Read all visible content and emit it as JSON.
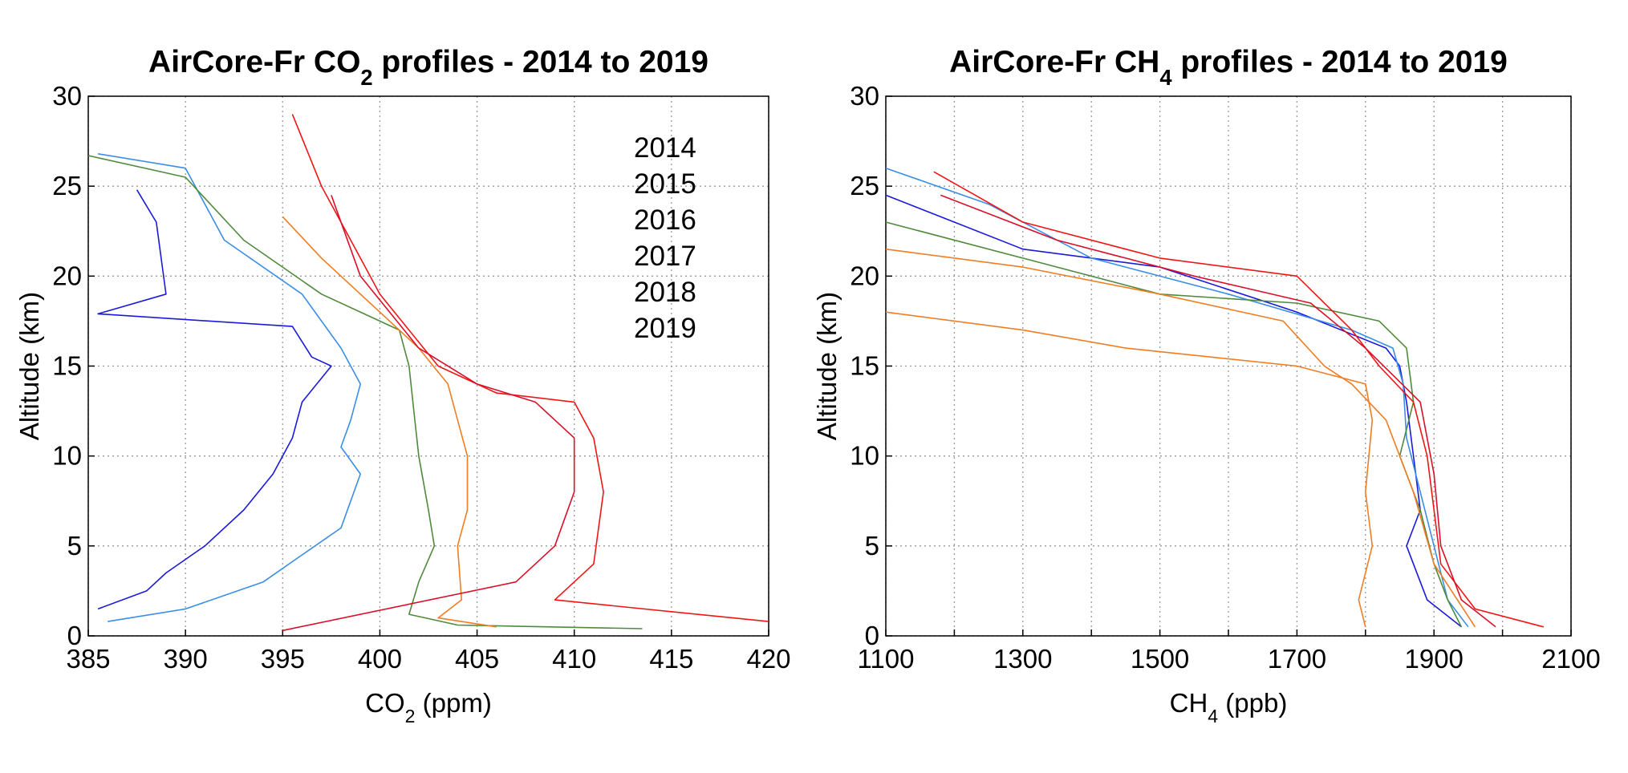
{
  "chart_data": [
    {
      "type": "line",
      "title": [
        "AirCore-Fr CO",
        "2",
        " profiles - 2014 to 2019"
      ],
      "xlabel": [
        "CO",
        "2",
        " (ppm)"
      ],
      "ylabel": "Altitude (km)",
      "xlim": [
        385,
        420
      ],
      "xticks": [
        385,
        390,
        395,
        400,
        405,
        410,
        415,
        420
      ],
      "ylim": [
        0,
        30
      ],
      "yticks": [
        0,
        5,
        10,
        15,
        20,
        25,
        30
      ],
      "grid": true,
      "legend": "upper right",
      "series": [
        {
          "name": "2014",
          "color": "#1a1adc",
          "x": [
            387.5,
            388.5,
            389,
            385.5,
            395.5,
            396.5,
            397.5,
            396,
            395.5,
            394.5,
            393,
            391,
            389,
            388,
            385.5
          ],
          "values": [
            24.8,
            23,
            19,
            17.9,
            17.2,
            15.5,
            15,
            13,
            11,
            9,
            7,
            5,
            3.5,
            2.5,
            1.5
          ]
        },
        {
          "name": "2015",
          "color": "#3a8ee6",
          "x": [
            385.5,
            390,
            392,
            396,
            398,
            399,
            398.5,
            398,
            399,
            398,
            396,
            394,
            390,
            386
          ],
          "values": [
            26.8,
            26,
            22,
            19,
            16,
            14,
            12,
            10.5,
            9,
            6,
            4.5,
            3,
            1.5,
            0.8
          ]
        },
        {
          "name": "2016",
          "color": "#4f8a3b",
          "x": [
            385,
            390,
            393,
            397,
            401,
            401.5,
            401.8,
            402,
            402.5,
            402.8,
            402,
            401.5,
            404,
            413.5
          ],
          "values": [
            26.7,
            25.5,
            22,
            19,
            17,
            15,
            12,
            10,
            7,
            5,
            3,
            1.2,
            0.6,
            0.4
          ]
        },
        {
          "name": "2017",
          "color": "#f07d22",
          "x": [
            395,
            397,
            400,
            402,
            403.5,
            404,
            404.5,
            404.5,
            404,
            404.2,
            403,
            406
          ],
          "values": [
            23.3,
            21,
            18,
            16,
            14,
            12,
            10,
            7,
            5,
            2,
            1,
            0.5
          ]
        },
        {
          "name": "2018",
          "color": "#f01616",
          "x": [
            395.5,
            397,
            398.5,
            400,
            403,
            406,
            410,
            411,
            411.5,
            411,
            409,
            420
          ],
          "values": [
            29,
            25,
            22,
            19,
            15,
            13.5,
            13,
            11,
            8,
            4,
            2,
            0.8
          ]
        },
        {
          "name": "2019",
          "color": "#d8102a",
          "x": [
            397.5,
            399,
            402,
            405,
            408,
            410,
            410,
            409,
            407,
            395
          ],
          "values": [
            24.5,
            20,
            16,
            14,
            13,
            11,
            8,
            5,
            3,
            0.3
          ]
        }
      ]
    },
    {
      "type": "line",
      "title": [
        "AirCore-Fr CH",
        "4",
        " profiles - 2014 to 2019"
      ],
      "xlabel": [
        "CH",
        "4",
        " (ppb)"
      ],
      "ylabel": "Altitude (km)",
      "xlim": [
        1100,
        2100
      ],
      "xticks": [
        1100,
        1300,
        1500,
        1700,
        1900,
        2100
      ],
      "xminor": [
        1200,
        1400,
        1600,
        1800,
        2000
      ],
      "ylim": [
        0,
        30
      ],
      "yticks": [
        0,
        5,
        10,
        15,
        20,
        25,
        30
      ],
      "grid": true,
      "series": [
        {
          "color": "#1a1adc",
          "x": [
            1100,
            1200,
            1300,
            1500,
            1700,
            1830,
            1850,
            1860,
            1870,
            1880,
            1860,
            1890,
            1940
          ],
          "values": [
            24.5,
            23,
            21.5,
            20.5,
            18,
            16,
            15,
            13,
            10,
            7,
            5,
            2,
            0.5
          ]
        },
        {
          "color": "#3a8ee6",
          "x": [
            1100,
            1250,
            1400,
            1600,
            1780,
            1840,
            1855,
            1860,
            1880,
            1900,
            1920,
            1950
          ],
          "values": [
            26,
            24,
            21,
            19,
            17,
            16,
            14,
            11,
            8,
            5,
            2,
            0.5
          ]
        },
        {
          "color": "#4f8a3b",
          "x": [
            1100,
            1300,
            1500,
            1700,
            1820,
            1860,
            1870,
            1850,
            1880,
            1900,
            1920,
            1940
          ],
          "values": [
            23,
            21,
            19,
            18.5,
            17.5,
            16,
            13,
            10,
            7,
            4,
            2,
            0.5
          ]
        },
        {
          "color": "#f07d22",
          "x": [
            1100,
            1300,
            1450,
            1700,
            1800,
            1810,
            1800,
            1810,
            1790,
            1800
          ],
          "values": [
            18,
            17,
            16,
            15,
            14,
            12,
            8,
            5,
            2,
            0.5
          ]
        },
        {
          "color": "#f07d22",
          "x": [
            1100,
            1300,
            1500,
            1680,
            1740,
            1780,
            1830,
            1870,
            1900,
            1960
          ],
          "values": [
            21.5,
            20.5,
            19,
            17.5,
            15,
            14,
            12,
            8,
            4,
            0.5
          ]
        },
        {
          "color": "#f01616",
          "x": [
            1170,
            1300,
            1500,
            1700,
            1780,
            1820,
            1870,
            1890,
            1900,
            1910,
            1960,
            2060
          ],
          "values": [
            25.8,
            23,
            21,
            20,
            17,
            15,
            13,
            10,
            7,
            4,
            1.5,
            0.5
          ]
        },
        {
          "color": "#d8102a",
          "x": [
            1180,
            1350,
            1550,
            1720,
            1800,
            1880,
            1900,
            1910,
            1940,
            1990
          ],
          "values": [
            24.5,
            22,
            20,
            18.5,
            16,
            13,
            9,
            5,
            2,
            0.5
          ]
        }
      ]
    }
  ]
}
